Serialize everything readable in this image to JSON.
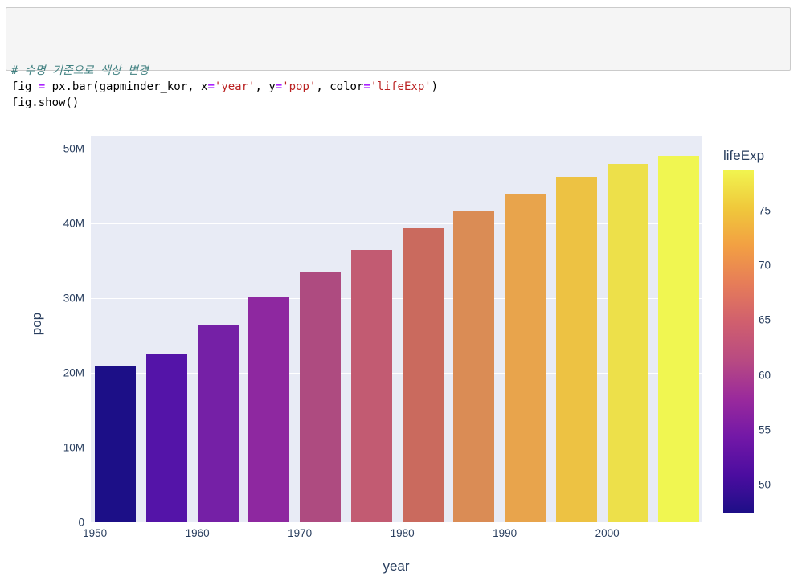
{
  "code_cell": {
    "token_colors": {
      "comment": "#408080",
      "op": "#AA22FF",
      "str": "#BA2121",
      "plain": "#000000"
    },
    "lines": [
      {
        "tokens": [
          {
            "type": "comment",
            "text": "# 수명 기준으로 색상 변경"
          }
        ]
      },
      {
        "tokens": [
          {
            "type": "plain",
            "text": "fig "
          },
          {
            "type": "op",
            "text": "="
          },
          {
            "type": "plain",
            "text": " px.bar(gapminder_kor, x"
          },
          {
            "type": "op",
            "text": "="
          },
          {
            "type": "str",
            "text": "'year'"
          },
          {
            "type": "plain",
            "text": ", y"
          },
          {
            "type": "op",
            "text": "="
          },
          {
            "type": "str",
            "text": "'pop'"
          },
          {
            "type": "plain",
            "text": ", color"
          },
          {
            "type": "op",
            "text": "="
          },
          {
            "type": "str",
            "text": "'lifeExp'"
          },
          {
            "type": "plain",
            "text": ")"
          }
        ]
      },
      {
        "tokens": [
          {
            "type": "plain",
            "text": "fig.show()"
          }
        ]
      }
    ]
  },
  "chart_data": {
    "type": "bar",
    "title": "",
    "xlabel": "year",
    "ylabel": "pop",
    "x": [
      1952,
      1957,
      1962,
      1967,
      1972,
      1977,
      1982,
      1987,
      1992,
      1997,
      2002,
      2007
    ],
    "series": [
      {
        "name": "pop",
        "values": [
          20947571,
          22611552,
          26420307,
          30131000,
          33505000,
          36436000,
          39326000,
          41622000,
          43805450,
          46173816,
          47969150,
          49044790
        ]
      }
    ],
    "color_series": {
      "name": "lifeExp",
      "values": [
        47.5,
        52.7,
        55.3,
        57.7,
        62.6,
        64.8,
        67.1,
        69.8,
        72.2,
        74.6,
        77.0,
        78.6
      ]
    },
    "bar_colors": [
      "#1c0f87",
      "#5414a8",
      "#7520a6",
      "#8e28a0",
      "#ae4b80",
      "#c25b72",
      "#ca6a5e",
      "#da8c55",
      "#e8a44c",
      "#edc243",
      "#ede04a",
      "#f0f651"
    ],
    "x_ticks": [
      {
        "value": 1950,
        "label": "1950"
      },
      {
        "value": 1960,
        "label": "1960"
      },
      {
        "value": 1970,
        "label": "1970"
      },
      {
        "value": 1980,
        "label": "1980"
      },
      {
        "value": 1990,
        "label": "1990"
      },
      {
        "value": 2000,
        "label": "2000"
      }
    ],
    "y_ticks": [
      {
        "value": 0,
        "label": "0"
      },
      {
        "value": 10000000,
        "label": "10M"
      },
      {
        "value": 20000000,
        "label": "20M"
      },
      {
        "value": 30000000,
        "label": "30M"
      },
      {
        "value": 40000000,
        "label": "40M"
      },
      {
        "value": 50000000,
        "label": "50M"
      }
    ],
    "xlim": [
      1949.6,
      2009.2
    ],
    "ylim": [
      0,
      51700000
    ],
    "grid": "horizontal-only",
    "legend_position": "right-colorbar",
    "plot_bg_color": "#e8ebf5",
    "gridline_color": "#ffffff",
    "font_color": "#2a3f5f",
    "bar_width_years": 4,
    "colorbar": {
      "title": "lifeExp",
      "min": 47.453,
      "max": 78.623,
      "ticks": [
        {
          "value": 50,
          "label": "50"
        },
        {
          "value": 55,
          "label": "55"
        },
        {
          "value": 60,
          "label": "60"
        },
        {
          "value": 65,
          "label": "65"
        },
        {
          "value": 70,
          "label": "70"
        },
        {
          "value": 75,
          "label": "75"
        }
      ],
      "colorscale_bottom_to_top": [
        "#1e0e87",
        "#4c0da0",
        "#7318a7",
        "#9a2a9c",
        "#b84a82",
        "#d05f6e",
        "#e67c59",
        "#f29f43",
        "#f0c83b",
        "#f1f44f"
      ]
    }
  }
}
